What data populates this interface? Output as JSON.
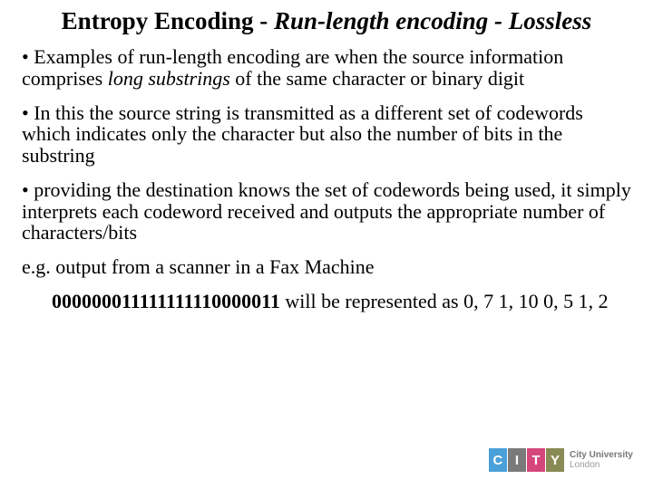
{
  "title": {
    "part1": "Entropy Encoding",
    "dash1": " - ",
    "part2": "Run-length encoding - Lossless"
  },
  "bullets": {
    "b1a": "• Examples of run-length encoding are when the source information comprises ",
    "b1b": "long substrings",
    "b1c": " of the same character or binary digit",
    "b2": "• In this the source string is transmitted as a different set of codewords which indicates only the character but also the number of bits in the substring",
    "b3": "• providing the destination knows the set of codewords being used, it simply interprets each codeword received and outputs the appropriate number of characters/bits",
    "b4": "e.g. output from a scanner in a Fax Machine",
    "b5pre": "      ",
    "b5bold": "000000011111111110000011",
    "b5post": " will be represented as 0, 7 1, 10 0, 5 1, 2"
  },
  "logo": {
    "tiles": {
      "c": "C",
      "i": "I",
      "t": "T",
      "y": "Y"
    },
    "colors": {
      "c": "#4aa0d8",
      "i": "#7a7a7a",
      "t": "#d5477a",
      "y": "#8a8a55"
    },
    "line1": "City University",
    "line2": "London"
  },
  "colors": {
    "bg": "#ffffff",
    "text": "#000000"
  }
}
